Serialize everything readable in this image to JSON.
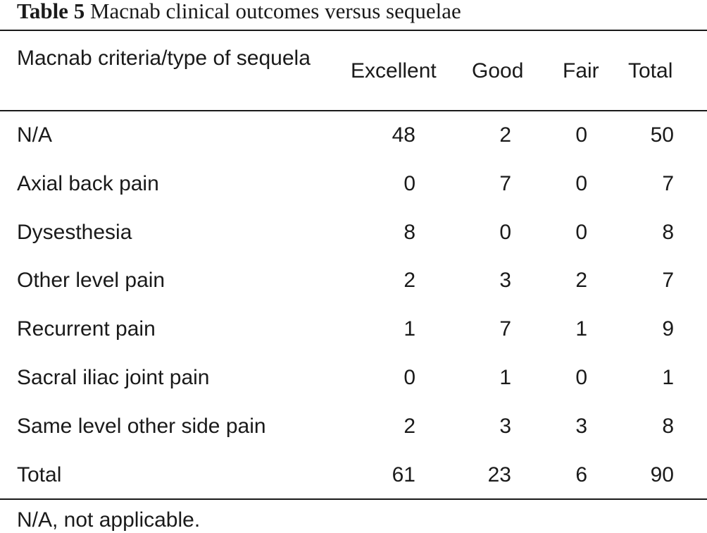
{
  "caption": {
    "label": "Table 5",
    "title": "Macnab clinical outcomes versus sequelae"
  },
  "table": {
    "columns": [
      "Macnab criteria/type of sequela",
      "Excellent",
      "Good",
      "Fair",
      "Total"
    ],
    "rows": [
      {
        "label": "N/A",
        "excellent": "48",
        "good": "2",
        "fair": "0",
        "total": "50"
      },
      {
        "label": "Axial back pain",
        "excellent": "0",
        "good": "7",
        "fair": "0",
        "total": "7"
      },
      {
        "label": "Dysesthesia",
        "excellent": "8",
        "good": "0",
        "fair": "0",
        "total": "8"
      },
      {
        "label": "Other level pain",
        "excellent": "2",
        "good": "3",
        "fair": "2",
        "total": "7"
      },
      {
        "label": "Recurrent pain",
        "excellent": "1",
        "good": "7",
        "fair": "1",
        "total": "9"
      },
      {
        "label": "Sacral iliac joint pain",
        "excellent": "0",
        "good": "1",
        "fair": "0",
        "total": "1"
      },
      {
        "label": "Same level other side pain",
        "excellent": "2",
        "good": "3",
        "fair": "3",
        "total": "8"
      },
      {
        "label": "Total",
        "excellent": "61",
        "good": "23",
        "fair": "6",
        "total": "90"
      }
    ]
  },
  "footnote": "N/A, not applicable."
}
